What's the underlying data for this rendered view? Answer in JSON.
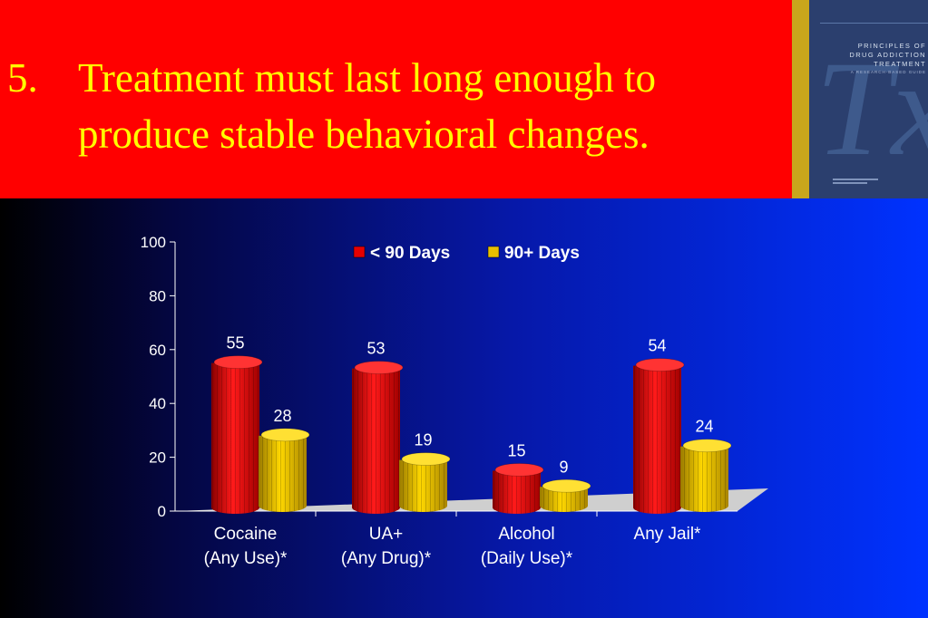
{
  "slide": {
    "number": "5.",
    "heading_line1": "Treatment must last long enough to",
    "heading_line2": "produce stable behavioral changes."
  },
  "cover": {
    "title_line1": "PRINCIPLES OF",
    "title_line2": "DRUG ADDICTION",
    "title_line3": "TREATMENT",
    "subtitle": "A RESEARCH-BASED GUIDE",
    "monogram": "Tx"
  },
  "colors": {
    "header_bg": "#ff0000",
    "heading_text": "#ffff00",
    "series_lt90": "#e60000",
    "series_90plus": "#e8c000",
    "axis_text": "#ffffff",
    "floor": "#cfcfcf"
  },
  "chart_data": {
    "type": "bar",
    "categories": [
      [
        "Cocaine",
        "(Any Use)*"
      ],
      [
        "UA+",
        "(Any Drug)*"
      ],
      [
        "Alcohol",
        "(Daily Use)*"
      ],
      [
        "Any Jail*"
      ]
    ],
    "series": [
      {
        "name": "< 90 Days",
        "values": [
          55,
          53,
          15,
          54
        ],
        "color": "#e60000"
      },
      {
        "name": "90+ Days",
        "values": [
          28,
          19,
          9,
          24
        ],
        "color": "#e8c000"
      }
    ],
    "ylim": [
      0,
      100
    ],
    "yticks": [
      "0",
      "20",
      "40",
      "60",
      "80",
      "100"
    ],
    "title": "",
    "xlabel": "",
    "ylabel": "",
    "legend_position": "top",
    "grid": false,
    "style": "3d-cylinder"
  }
}
